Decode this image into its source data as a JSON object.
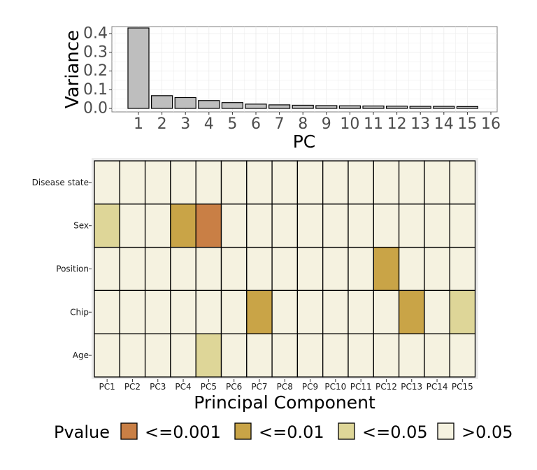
{
  "chart_data": [
    {
      "type": "bar",
      "xlabel": "PC",
      "ylabel": "Variance",
      "categories": [
        "1",
        "2",
        "3",
        "4",
        "5",
        "6",
        "7",
        "8",
        "9",
        "10",
        "11",
        "12",
        "13",
        "14",
        "15"
      ],
      "x_ticks": [
        "1",
        "2",
        "3",
        "4",
        "5",
        "6",
        "7",
        "8",
        "9",
        "10",
        "11",
        "12",
        "13",
        "14",
        "15",
        "16"
      ],
      "values": [
        0.43,
        0.068,
        0.058,
        0.042,
        0.031,
        0.023,
        0.019,
        0.017,
        0.015,
        0.014,
        0.013,
        0.012,
        0.011,
        0.011,
        0.01
      ],
      "y_ticks": [
        "0.0",
        "0.1",
        "0.2",
        "0.3",
        "0.4"
      ],
      "ylim": [
        0,
        0.44
      ],
      "grid": true,
      "bar_color": "#bebebe"
    },
    {
      "type": "heatmap",
      "xlabel": "Principal Component",
      "x_categories": [
        "PC1",
        "PC2",
        "PC3",
        "PC4",
        "PC5",
        "PC6",
        "PC7",
        "PC8",
        "PC9",
        "PC10",
        "PC11",
        "PC12",
        "PC13",
        "PC14",
        "PC15"
      ],
      "y_categories": [
        "Disease state",
        "Sex",
        "Position",
        "Chip",
        "Age"
      ],
      "cells": [
        [
          ">0.05",
          ">0.05",
          ">0.05",
          ">0.05",
          ">0.05",
          ">0.05",
          ">0.05",
          ">0.05",
          ">0.05",
          ">0.05",
          ">0.05",
          ">0.05",
          ">0.05",
          ">0.05",
          ">0.05"
        ],
        [
          "<=0.05",
          ">0.05",
          ">0.05",
          "<=0.01",
          "<=0.001",
          ">0.05",
          ">0.05",
          ">0.05",
          ">0.05",
          ">0.05",
          ">0.05",
          ">0.05",
          ">0.05",
          ">0.05",
          ">0.05"
        ],
        [
          ">0.05",
          ">0.05",
          ">0.05",
          ">0.05",
          ">0.05",
          ">0.05",
          ">0.05",
          ">0.05",
          ">0.05",
          ">0.05",
          ">0.05",
          "<=0.01",
          ">0.05",
          ">0.05",
          ">0.05"
        ],
        [
          ">0.05",
          ">0.05",
          ">0.05",
          ">0.05",
          ">0.05",
          ">0.05",
          "<=0.01",
          ">0.05",
          ">0.05",
          ">0.05",
          ">0.05",
          ">0.05",
          "<=0.01",
          ">0.05",
          "<=0.05"
        ],
        [
          ">0.05",
          ">0.05",
          ">0.05",
          ">0.05",
          "<=0.05",
          ">0.05",
          ">0.05",
          ">0.05",
          ">0.05",
          ">0.05",
          ">0.05",
          ">0.05",
          ">0.05",
          ">0.05",
          ">0.05"
        ]
      ],
      "legend": {
        "title": "Pvalue",
        "placement": "bottom",
        "entries": [
          {
            "label": "<=0.001",
            "color": "#c97f45"
          },
          {
            "label": "<=0.01",
            "color": "#c9a447"
          },
          {
            "label": "<=0.05",
            "color": "#ded698"
          },
          {
            "label": ">0.05",
            "color": "#f5f2e0"
          }
        ]
      }
    }
  ]
}
